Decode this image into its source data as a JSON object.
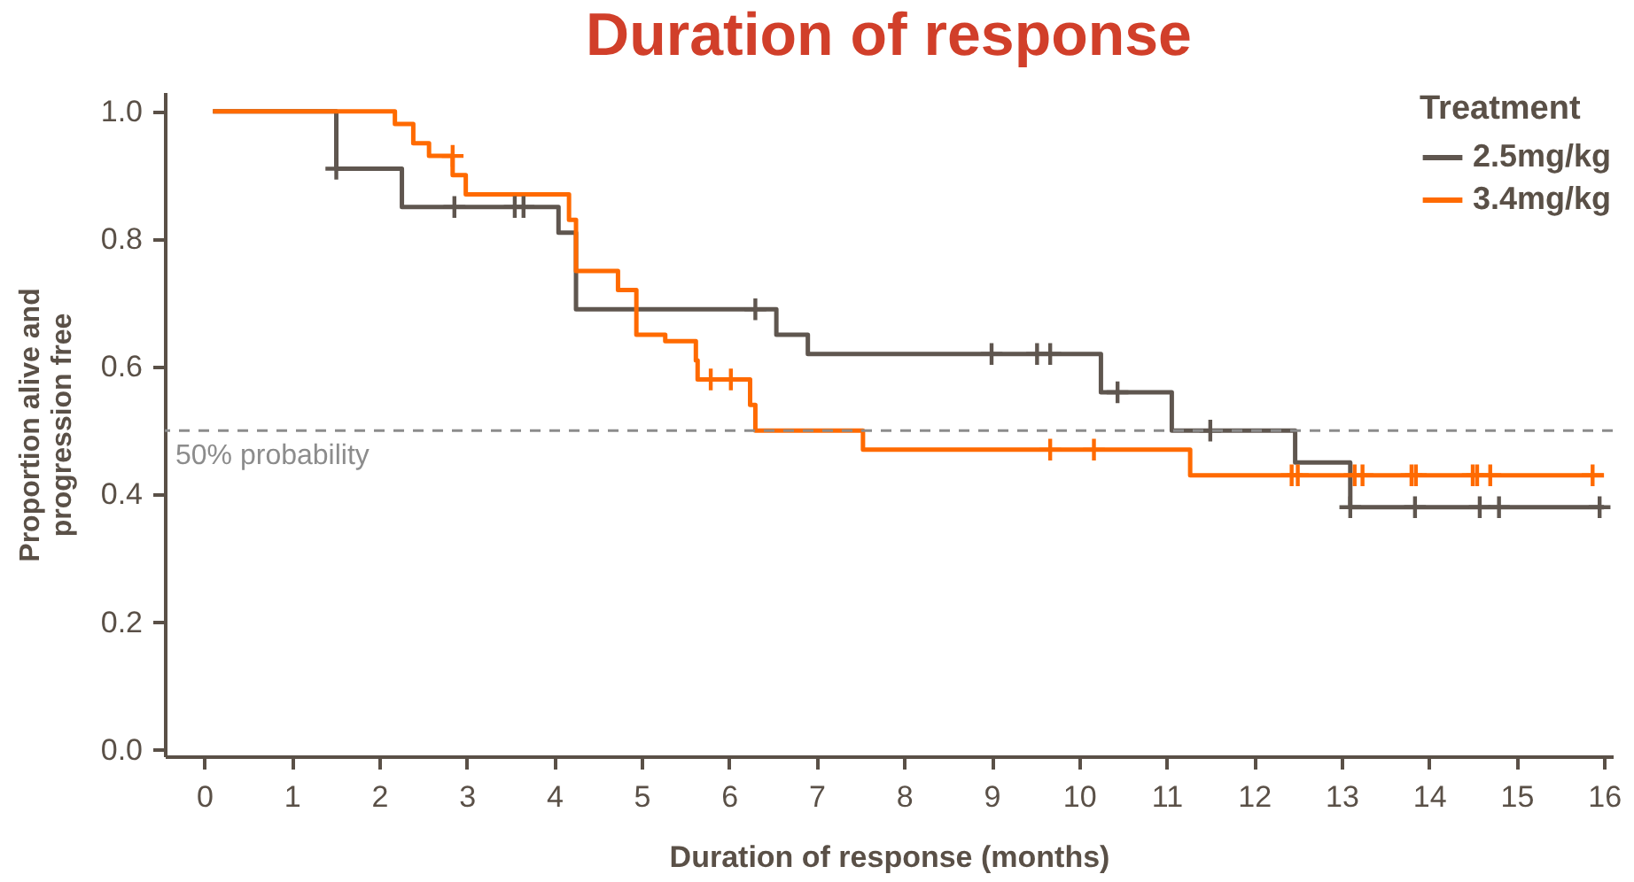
{
  "chart_data": {
    "type": "step",
    "title": "Duration of response",
    "xlabel": "Duration of response (months)",
    "ylabel": "Proportion alive and\nprogression free",
    "legend_title": "Treatment",
    "legend": "top right",
    "grid": false,
    "xlim": [
      -0.45,
      16.1
    ],
    "xticks": [
      0,
      1,
      2,
      3,
      4,
      5,
      6,
      7,
      8,
      9,
      10,
      11,
      12,
      13,
      14,
      15,
      16
    ],
    "ylim": [
      -0.01,
      1.03
    ],
    "yticks": [
      {
        "value": 0,
        "label": "0.0"
      },
      0.2,
      0.4,
      0.6,
      0.8,
      {
        "value": 1,
        "label": "1.0"
      }
    ],
    "ref_lines": [
      {
        "axis": "y",
        "value": 0.5,
        "label": "50% probability",
        "color": "#8c8c8c",
        "line_style": "dashed"
      }
    ],
    "series": [
      {
        "name": "2.5mg/kg",
        "color": "#5f564f",
        "marker": "none",
        "x": [
          0.1,
          1.51,
          2.26,
          4.05,
          4.25,
          6.54,
          6.9,
          10.25,
          11.06,
          12.47,
          13.1,
          16.0
        ],
        "values": [
          1.0,
          0.91,
          0.85,
          0.81,
          0.69,
          0.65,
          0.62,
          0.56,
          0.5,
          0.45,
          0.38,
          0.38
        ]
      },
      {
        "name": "3.4mg/kg",
        "color": "#ff6a00",
        "marker": "none",
        "x": [
          0.1,
          2.18,
          2.39,
          2.57,
          2.84,
          2.99,
          4.17,
          4.25,
          4.73,
          4.94,
          5.27,
          5.62,
          5.64,
          6.24,
          6.3,
          7.53,
          11.27,
          16.0
        ],
        "values": [
          1.0,
          0.98,
          0.95,
          0.93,
          0.9,
          0.87,
          0.83,
          0.75,
          0.72,
          0.65,
          0.64,
          0.61,
          0.58,
          0.54,
          0.5,
          0.47,
          0.43,
          0.43
        ]
      },
      {
        "color": "#5f564f",
        "type": "scatter",
        "marker": "cross",
        "x": [
          1.51,
          2.86,
          3.55,
          3.65,
          6.3,
          9.0,
          9.52,
          9.67,
          10.44,
          11.5,
          13.1,
          13.84,
          14.58,
          14.8,
          15.95
        ],
        "values": [
          0.91,
          0.85,
          0.85,
          0.85,
          0.69,
          0.62,
          0.62,
          0.62,
          0.56,
          0.5,
          0.38,
          0.38,
          0.38,
          0.38,
          0.38
        ]
      },
      {
        "color": "#ff6a00",
        "type": "scatter",
        "marker": "cross",
        "x": [
          2.84,
          5.79,
          6.02,
          9.67,
          10.17,
          12.43,
          12.5,
          13.15,
          13.24,
          13.8,
          13.85,
          14.5,
          14.55,
          14.7,
          15.87
        ],
        "values": [
          0.93,
          0.58,
          0.58,
          0.47,
          0.47,
          0.43,
          0.43,
          0.43,
          0.43,
          0.43,
          0.43,
          0.43,
          0.43,
          0.43,
          0.43
        ]
      }
    ]
  }
}
